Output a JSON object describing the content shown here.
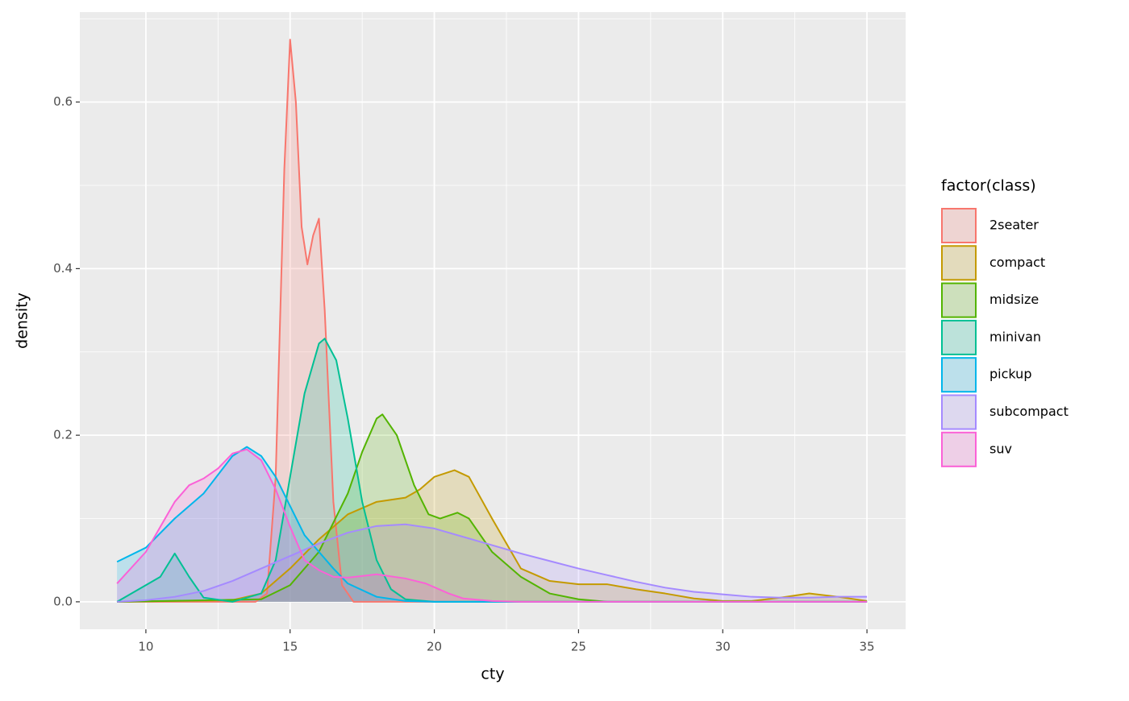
{
  "chart_data": {
    "type": "density",
    "x_label": "cty",
    "y_label": "density",
    "legend_title": "factor(class)",
    "legend": "right",
    "xlim": [
      7.71,
      36.34
    ],
    "ylim": [
      -0.033,
      0.708
    ],
    "xticks": [
      10,
      15,
      20,
      25,
      30,
      35
    ],
    "yticks": [
      {
        "value": 0,
        "label": "0.0"
      },
      0.2,
      0.4,
      0.6
    ],
    "minor_xticks": [
      12.5,
      17.5,
      22.5,
      27.5,
      32.5
    ],
    "minor_yticks": [
      0.1,
      0.3,
      0.5,
      0.7
    ],
    "grid": true,
    "series": [
      {
        "name": "2seater",
        "color": "#F8766D",
        "x": [
          9,
          13.8,
          14.2,
          14.5,
          14.8,
          15,
          15.2,
          15.4,
          15.6,
          15.8,
          16,
          16.2,
          16.5,
          16.8,
          17.2,
          35
        ],
        "values": [
          0,
          0,
          0.01,
          0.15,
          0.52,
          0.675,
          0.6,
          0.45,
          0.405,
          0.44,
          0.46,
          0.35,
          0.12,
          0.02,
          0,
          0
        ]
      },
      {
        "name": "compact",
        "color": "#C49A00",
        "x": [
          9,
          13,
          14,
          15,
          16,
          17,
          18,
          19,
          19.5,
          20,
          20.7,
          21.2,
          22,
          23,
          24,
          25,
          26,
          27,
          28,
          29,
          30,
          31,
          32,
          33,
          34,
          35
        ],
        "values": [
          0,
          0.002,
          0.01,
          0.04,
          0.075,
          0.105,
          0.12,
          0.125,
          0.135,
          0.15,
          0.158,
          0.15,
          0.1,
          0.04,
          0.025,
          0.021,
          0.021,
          0.015,
          0.01,
          0.004,
          0.001,
          0.001,
          0.005,
          0.01,
          0.006,
          0.001
        ]
      },
      {
        "name": "midsize",
        "color": "#53B400",
        "x": [
          9,
          14,
          15,
          16,
          17,
          17.5,
          18,
          18.2,
          18.7,
          19.3,
          19.8,
          20.2,
          20.8,
          21.2,
          22,
          23,
          24,
          25,
          26,
          35
        ],
        "values": [
          0,
          0.003,
          0.02,
          0.06,
          0.13,
          0.18,
          0.22,
          0.225,
          0.2,
          0.14,
          0.105,
          0.1,
          0.107,
          0.1,
          0.06,
          0.03,
          0.01,
          0.003,
          0,
          0
        ]
      },
      {
        "name": "minivan",
        "color": "#00C094",
        "x": [
          9,
          10.5,
          11,
          11.5,
          12,
          13,
          14,
          14.5,
          15,
          15.5,
          16,
          16.2,
          16.6,
          17,
          17.5,
          18,
          18.5,
          19,
          20,
          35
        ],
        "values": [
          0,
          0.03,
          0.058,
          0.03,
          0.005,
          0,
          0.01,
          0.05,
          0.15,
          0.25,
          0.31,
          0.316,
          0.29,
          0.22,
          0.12,
          0.05,
          0.015,
          0.003,
          0,
          0
        ]
      },
      {
        "name": "pickup",
        "color": "#00B6EB",
        "x": [
          9,
          10,
          11,
          12,
          13,
          13.5,
          14,
          14.5,
          15,
          15.5,
          16,
          16.5,
          17,
          18,
          19,
          20,
          35
        ],
        "values": [
          0.048,
          0.065,
          0.1,
          0.13,
          0.175,
          0.186,
          0.175,
          0.15,
          0.115,
          0.08,
          0.06,
          0.04,
          0.022,
          0.006,
          0.001,
          0,
          0
        ]
      },
      {
        "name": "subcompact",
        "color": "#A58AFF",
        "x": [
          9,
          10,
          11,
          12,
          13,
          14,
          15,
          16,
          17,
          18,
          19,
          20,
          21,
          22,
          23,
          24,
          25,
          26,
          27,
          28,
          29,
          30,
          31,
          32,
          33,
          34,
          35
        ],
        "values": [
          0,
          0.002,
          0.006,
          0.013,
          0.025,
          0.04,
          0.055,
          0.07,
          0.083,
          0.091,
          0.093,
          0.088,
          0.078,
          0.068,
          0.058,
          0.049,
          0.04,
          0.032,
          0.024,
          0.017,
          0.012,
          0.009,
          0.006,
          0.005,
          0.005,
          0.006,
          0.006
        ]
      },
      {
        "name": "suv",
        "color": "#FB61D7",
        "x": [
          9,
          10,
          11,
          11.5,
          12,
          12.5,
          13,
          13.5,
          14,
          14.5,
          15,
          15.5,
          16,
          16.5,
          17,
          17.5,
          18,
          19,
          19.7,
          20.5,
          21,
          22,
          23,
          35
        ],
        "values": [
          0.022,
          0.06,
          0.12,
          0.14,
          0.148,
          0.16,
          0.178,
          0.183,
          0.17,
          0.135,
          0.09,
          0.05,
          0.038,
          0.03,
          0.029,
          0.031,
          0.033,
          0.028,
          0.022,
          0.01,
          0.004,
          0.001,
          0,
          0
        ]
      }
    ]
  }
}
